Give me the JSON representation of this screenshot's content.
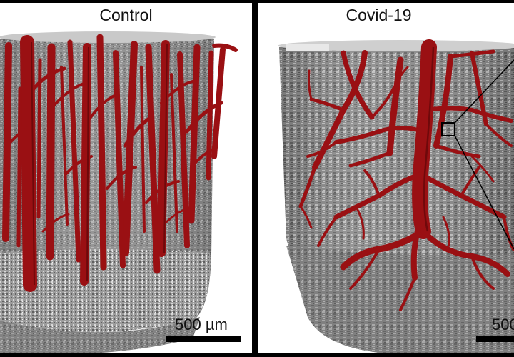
{
  "panels": {
    "left": {
      "title": "Control",
      "scale_label": "500 µm"
    },
    "right": {
      "title": "Covid-19",
      "scale_label": "500"
    }
  },
  "colors": {
    "vessel": "#9a1013",
    "vessel_dark": "#5c0708",
    "tissue": "#8e8e8e",
    "background": "#ffffff",
    "divider": "#000000"
  }
}
